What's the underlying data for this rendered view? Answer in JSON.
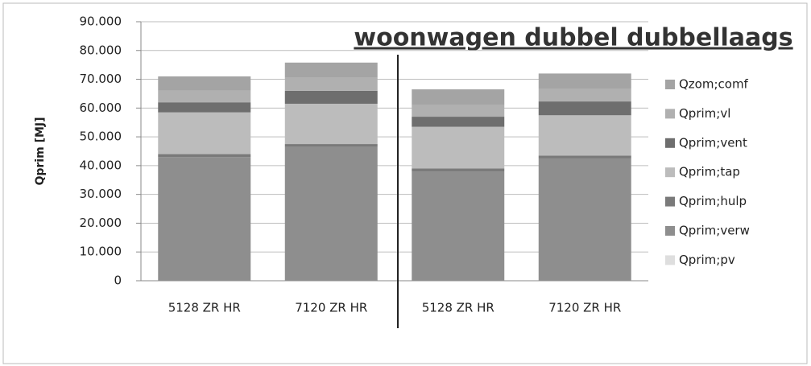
{
  "chart_data": {
    "type": "stacked_bar",
    "annotation": "woonwagen dubbel dubbellaags",
    "y_label": "Qprim [MJ]",
    "categories": [
      "5128 ZR HR",
      "7120 ZR HR",
      "5128 ZR HR",
      "7120 ZR HR"
    ],
    "series": [
      {
        "name": "Qprim;pv",
        "color": "#dedede",
        "values": [
          0,
          0,
          0,
          0
        ]
      },
      {
        "name": "Qprim;verw",
        "color": "#8e8e8e",
        "values": [
          43000,
          46500,
          38000,
          42500
        ]
      },
      {
        "name": "Qprim;hulp",
        "color": "#7a7a7a",
        "values": [
          1000,
          1000,
          1000,
          1000
        ]
      },
      {
        "name": "Qprim;tap",
        "color": "#bcbcbc",
        "values": [
          14500,
          14000,
          14500,
          14000
        ]
      },
      {
        "name": "Qprim;vent",
        "color": "#6e6e6e",
        "values": [
          3500,
          4500,
          3500,
          4800
        ]
      },
      {
        "name": "Qprim;vl",
        "color": "#b0b0b0",
        "values": [
          4000,
          4500,
          4000,
          4500
        ]
      },
      {
        "name": "Qzom;comf",
        "color": "#a4a4a4",
        "values": [
          5000,
          5300,
          5500,
          5200
        ]
      }
    ],
    "ylim": [
      0,
      90000
    ],
    "yticks": [
      0,
      {
        "value": 10000,
        "label": "10.000"
      },
      {
        "value": 20000,
        "label": "20.000"
      },
      {
        "value": 30000,
        "label": "30.000"
      },
      {
        "value": 40000,
        "label": "40.000"
      },
      {
        "value": 50000,
        "label": "50.000"
      },
      {
        "value": 60000,
        "label": "60.000"
      },
      {
        "value": 70000,
        "label": "70.000"
      },
      {
        "value": 80000,
        "label": "80.000"
      },
      {
        "value": 90000,
        "label": "90.000"
      }
    ],
    "grid": true,
    "legend": "right"
  }
}
